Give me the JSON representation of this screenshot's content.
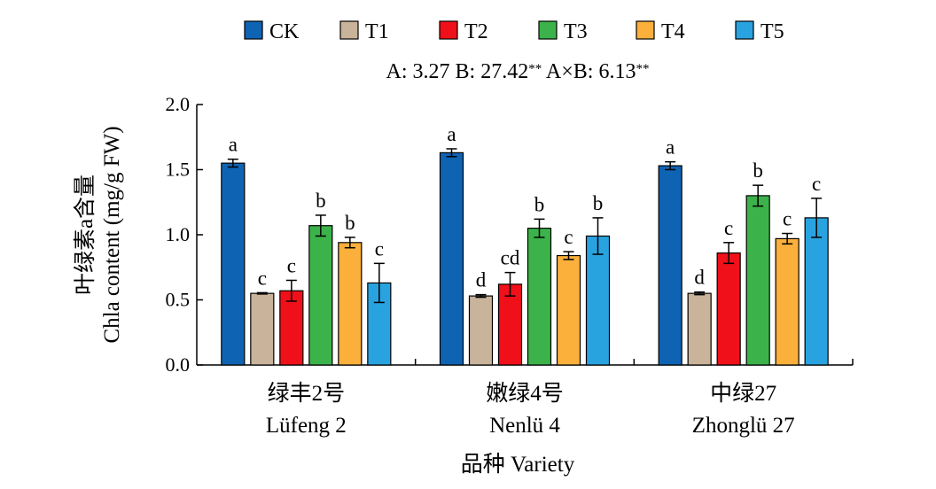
{
  "chart_data": {
    "type": "bar",
    "title": "",
    "ylabel_cn": "叶绿素a含量",
    "ylabel_en": "Chla content (mg/g FW)",
    "xlabel": "品种 Variety",
    "ylim": [
      0,
      2.0
    ],
    "yticks": [
      "0.0",
      "0.5",
      "1.0",
      "1.5",
      "2.0"
    ],
    "stats_text": "A: 3.27    B: 27.42**    A×B: 6.13**",
    "categories": [
      {
        "cn": "绿丰2号",
        "en": "Lüfeng 2"
      },
      {
        "cn": "嫩绿4号",
        "en": "Nenlü 4"
      },
      {
        "cn": "中绿27",
        "en": "Zhonglü 27"
      }
    ],
    "series": [
      {
        "name": "CK",
        "color": "#0f63b3",
        "values": [
          1.55,
          1.63,
          1.53
        ],
        "errors": [
          0.03,
          0.03,
          0.03
        ],
        "letters": [
          "a",
          "a",
          "a"
        ]
      },
      {
        "name": "T1",
        "color": "#c9b39a",
        "values": [
          0.55,
          0.53,
          0.55
        ],
        "errors": [
          0.005,
          0.01,
          0.01
        ],
        "letters": [
          "c",
          "d",
          "d"
        ]
      },
      {
        "name": "T2",
        "color": "#f0101a",
        "values": [
          0.57,
          0.62,
          0.86
        ],
        "errors": [
          0.08,
          0.09,
          0.08
        ],
        "letters": [
          "c",
          "cd",
          "c"
        ]
      },
      {
        "name": "T3",
        "color": "#3cb34a",
        "values": [
          1.07,
          1.05,
          1.3
        ],
        "errors": [
          0.08,
          0.07,
          0.08
        ],
        "letters": [
          "b",
          "b",
          "b"
        ]
      },
      {
        "name": "T4",
        "color": "#fbb03b",
        "values": [
          0.94,
          0.84,
          0.97
        ],
        "errors": [
          0.04,
          0.03,
          0.04
        ],
        "letters": [
          "b",
          "c",
          "c"
        ]
      },
      {
        "name": "T5",
        "color": "#29a3e0",
        "values": [
          0.63,
          0.99,
          1.13
        ],
        "errors": [
          0.15,
          0.14,
          0.15
        ],
        "letters": [
          "c",
          "b",
          "c"
        ]
      }
    ]
  }
}
